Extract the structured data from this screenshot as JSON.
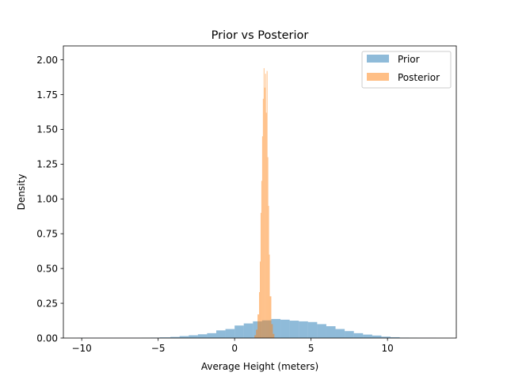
{
  "chart_data": {
    "type": "histogram",
    "title": "Prior vs Posterior",
    "xlabel": "Average Height (meters)",
    "ylabel": "Density",
    "xlim": [
      -11.2,
      14.5
    ],
    "ylim": [
      0,
      2.1
    ],
    "xticks": [
      -10,
      -5,
      0,
      5,
      10
    ],
    "yticks": [
      0.0,
      0.25,
      0.5,
      0.75,
      1.0,
      1.25,
      1.5,
      1.75,
      2.0
    ],
    "xtick_labels": [
      "−10",
      "−5",
      "0",
      "5",
      "10"
    ],
    "ytick_labels": [
      "0.00",
      "0.25",
      "0.50",
      "0.75",
      "1.00",
      "1.25",
      "1.50",
      "1.75",
      "2.00"
    ],
    "legend": {
      "location": "upper right",
      "entries": [
        "Prior",
        "Posterior"
      ]
    },
    "grid": false,
    "series": [
      {
        "name": "Prior",
        "color": "#1f77b4",
        "alpha": 0.5,
        "bins": [
          {
            "x0": -10.3,
            "x1": -9.7,
            "y": 0.001
          },
          {
            "x0": -9.7,
            "x1": -9.1,
            "y": 0.001
          },
          {
            "x0": -9.1,
            "x1": -8.5,
            "y": 0.001
          },
          {
            "x0": -8.5,
            "x1": -7.9,
            "y": 0.001
          },
          {
            "x0": -7.9,
            "x1": -7.3,
            "y": 0.001
          },
          {
            "x0": -7.3,
            "x1": -6.7,
            "y": 0.001
          },
          {
            "x0": -6.7,
            "x1": -6.1,
            "y": 0.001
          },
          {
            "x0": -6.1,
            "x1": -5.5,
            "y": 0.002
          },
          {
            "x0": -5.5,
            "x1": -4.9,
            "y": 0.003
          },
          {
            "x0": -4.9,
            "x1": -4.2,
            "y": 0.005
          },
          {
            "x0": -4.2,
            "x1": -3.6,
            "y": 0.008
          },
          {
            "x0": -3.6,
            "x1": -3.0,
            "y": 0.014
          },
          {
            "x0": -3.0,
            "x1": -2.4,
            "y": 0.02
          },
          {
            "x0": -2.4,
            "x1": -1.8,
            "y": 0.027
          },
          {
            "x0": -1.8,
            "x1": -1.2,
            "y": 0.035
          },
          {
            "x0": -1.2,
            "x1": -0.6,
            "y": 0.055
          },
          {
            "x0": -0.6,
            "x1": 0.0,
            "y": 0.065
          },
          {
            "x0": 0.0,
            "x1": 0.6,
            "y": 0.09
          },
          {
            "x0": 0.6,
            "x1": 1.2,
            "y": 0.105
          },
          {
            "x0": 1.2,
            "x1": 1.8,
            "y": 0.12
          },
          {
            "x0": 1.8,
            "x1": 2.4,
            "y": 0.127
          },
          {
            "x0": 2.4,
            "x1": 3.0,
            "y": 0.137
          },
          {
            "x0": 3.0,
            "x1": 3.6,
            "y": 0.132
          },
          {
            "x0": 3.6,
            "x1": 4.2,
            "y": 0.125
          },
          {
            "x0": 4.2,
            "x1": 4.8,
            "y": 0.12
          },
          {
            "x0": 4.8,
            "x1": 5.4,
            "y": 0.115
          },
          {
            "x0": 5.4,
            "x1": 6.0,
            "y": 0.1
          },
          {
            "x0": 6.0,
            "x1": 6.6,
            "y": 0.085
          },
          {
            "x0": 6.6,
            "x1": 7.2,
            "y": 0.065
          },
          {
            "x0": 7.2,
            "x1": 7.8,
            "y": 0.05
          },
          {
            "x0": 7.8,
            "x1": 8.4,
            "y": 0.035
          },
          {
            "x0": 8.4,
            "x1": 9.0,
            "y": 0.025
          },
          {
            "x0": 9.0,
            "x1": 9.6,
            "y": 0.018
          },
          {
            "x0": 9.6,
            "x1": 10.2,
            "y": 0.01
          },
          {
            "x0": 10.2,
            "x1": 10.8,
            "y": 0.006
          },
          {
            "x0": 10.8,
            "x1": 11.4,
            "y": 0.003
          },
          {
            "x0": 11.4,
            "x1": 12.0,
            "y": 0.002
          },
          {
            "x0": 12.0,
            "x1": 12.6,
            "y": 0.001
          },
          {
            "x0": 12.6,
            "x1": 13.2,
            "y": 0.001
          }
        ]
      },
      {
        "name": "Posterior",
        "color": "#ff7f0e",
        "alpha": 0.5,
        "bins": [
          {
            "x0": 1.3,
            "x1": 1.4,
            "y": 0.02
          },
          {
            "x0": 1.4,
            "x1": 1.5,
            "y": 0.06
          },
          {
            "x0": 1.5,
            "x1": 1.6,
            "y": 0.17
          },
          {
            "x0": 1.6,
            "x1": 1.65,
            "y": 0.33
          },
          {
            "x0": 1.65,
            "x1": 1.7,
            "y": 0.55
          },
          {
            "x0": 1.7,
            "x1": 1.75,
            "y": 0.9
          },
          {
            "x0": 1.75,
            "x1": 1.8,
            "y": 1.13
          },
          {
            "x0": 1.8,
            "x1": 1.85,
            "y": 1.45
          },
          {
            "x0": 1.85,
            "x1": 1.9,
            "y": 1.72
          },
          {
            "x0": 1.9,
            "x1": 1.95,
            "y": 1.94
          },
          {
            "x0": 1.95,
            "x1": 2.0,
            "y": 1.8
          },
          {
            "x0": 2.0,
            "x1": 2.05,
            "y": 1.9
          },
          {
            "x0": 2.05,
            "x1": 2.1,
            "y": 1.62
          },
          {
            "x0": 2.1,
            "x1": 2.15,
            "y": 1.92
          },
          {
            "x0": 2.15,
            "x1": 2.2,
            "y": 1.3
          },
          {
            "x0": 2.2,
            "x1": 2.25,
            "y": 0.95
          },
          {
            "x0": 2.25,
            "x1": 2.3,
            "y": 0.6
          },
          {
            "x0": 2.3,
            "x1": 2.4,
            "y": 0.3
          },
          {
            "x0": 2.4,
            "x1": 2.5,
            "y": 0.1
          },
          {
            "x0": 2.5,
            "x1": 2.6,
            "y": 0.03
          }
        ]
      }
    ]
  }
}
